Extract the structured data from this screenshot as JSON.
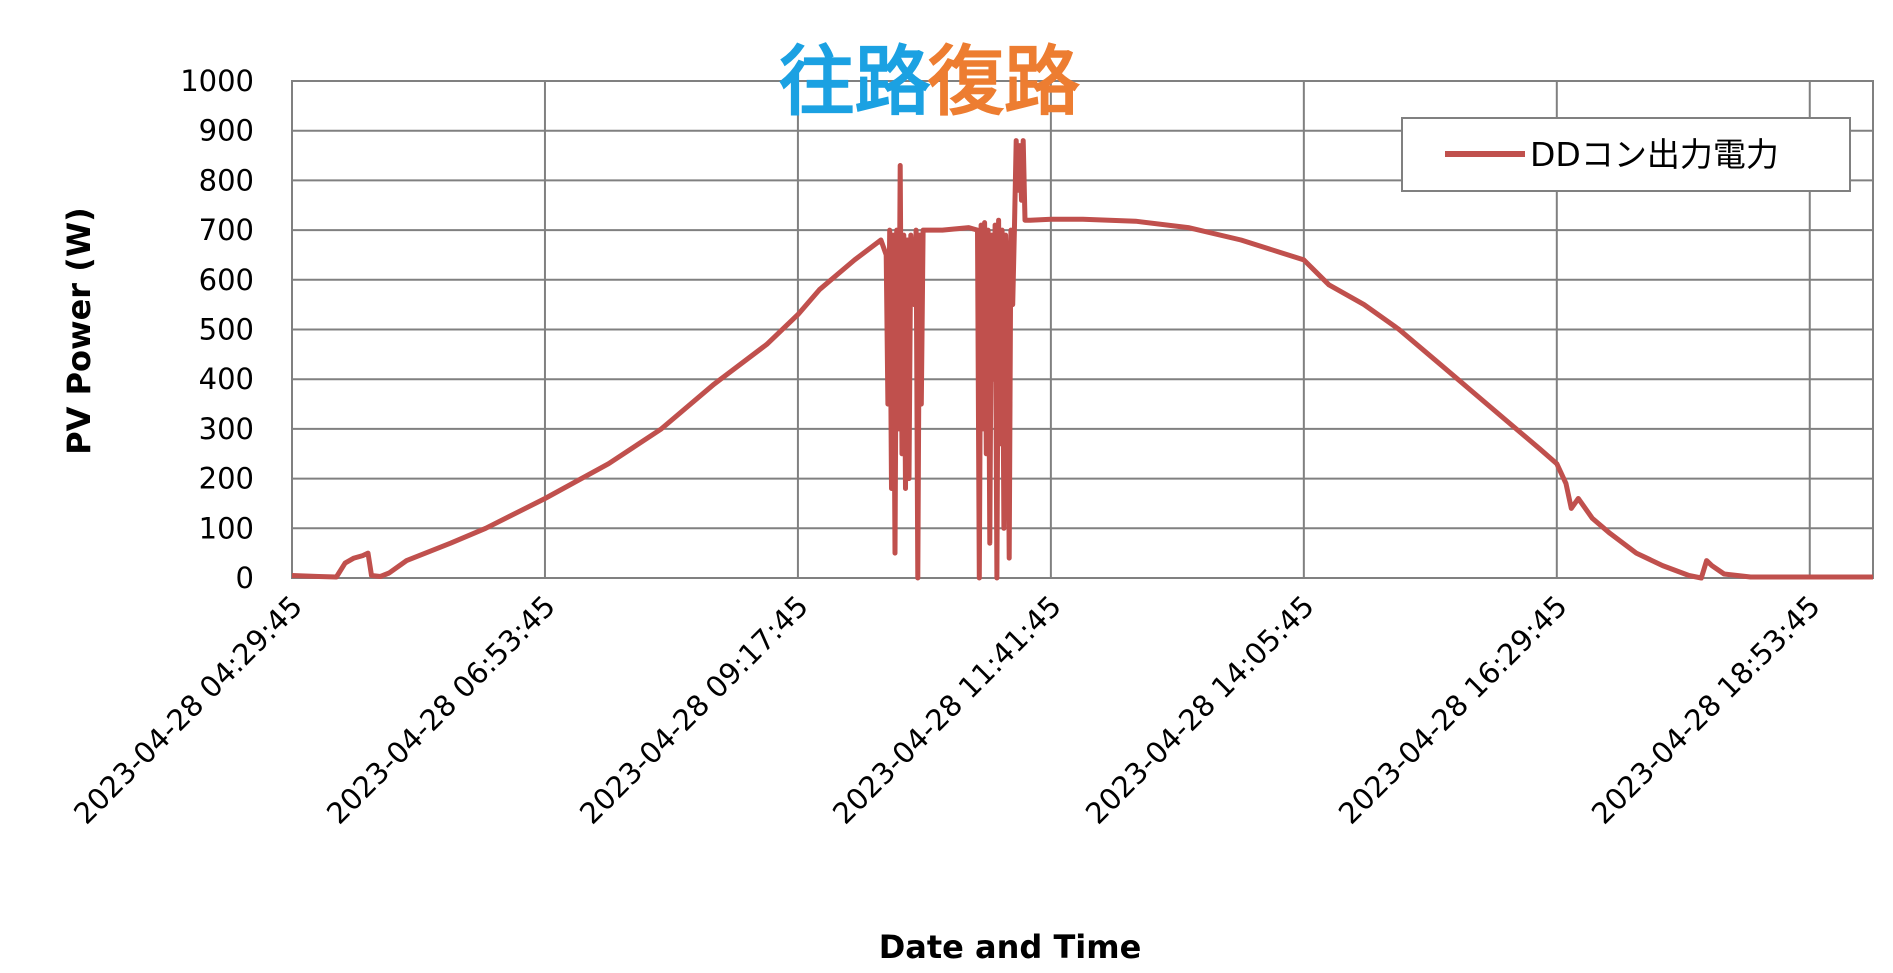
{
  "chart_data": {
    "type": "line",
    "xlabel": "Date and Time",
    "ylabel": "PV Power (W)",
    "ylim": [
      0,
      1000
    ],
    "yticks": [
      "0",
      "100",
      "200",
      "300",
      "400",
      "500",
      "600",
      "700",
      "800",
      "900",
      "1000"
    ],
    "xticks": [
      "2023-04-28 04:29:45",
      "2023-04-28 06:53:45",
      "2023-04-28 09:17:45",
      "2023-04-28 11:41:45",
      "2023-04-28 14:05:45",
      "2023-04-28 16:29:45",
      "2023-04-28 18:53:45"
    ],
    "xlim": [
      "2023-04-28 04:29:45",
      "2023-04-28 19:29:45"
    ],
    "grid": true,
    "legend_position": "top-right",
    "annotations": [
      {
        "text": "往路",
        "color": "#1BA1E2",
        "x": "2023-04-28 09:50:00"
      },
      {
        "text": "復路",
        "color": "#ED7D31",
        "x": "2023-04-28 11:15:00"
      }
    ],
    "series": [
      {
        "name": "DDコン出力電力",
        "color": "#C0504D",
        "points": [
          [
            "2023-04-28 04:29:45",
            5
          ],
          [
            "2023-04-28 04:45:00",
            3
          ],
          [
            "2023-04-28 04:55:00",
            2
          ],
          [
            "2023-04-28 05:00:00",
            30
          ],
          [
            "2023-04-28 05:05:00",
            40
          ],
          [
            "2023-04-28 05:10:00",
            45
          ],
          [
            "2023-04-28 05:13:00",
            50
          ],
          [
            "2023-04-28 05:15:00",
            5
          ],
          [
            "2023-04-28 05:20:00",
            3
          ],
          [
            "2023-04-28 05:25:00",
            10
          ],
          [
            "2023-04-28 05:35:00",
            35
          ],
          [
            "2023-04-28 06:00:00",
            70
          ],
          [
            "2023-04-28 06:20:00",
            100
          ],
          [
            "2023-04-28 06:53:45",
            160
          ],
          [
            "2023-04-28 07:30:00",
            230
          ],
          [
            "2023-04-28 08:00:00",
            300
          ],
          [
            "2023-04-28 08:30:00",
            390
          ],
          [
            "2023-04-28 09:00:00",
            470
          ],
          [
            "2023-04-28 09:17:45",
            530
          ],
          [
            "2023-04-28 09:30:00",
            580
          ],
          [
            "2023-04-28 09:50:00",
            640
          ],
          [
            "2023-04-28 10:05:00",
            680
          ],
          [
            "2023-04-28 10:08:00",
            650
          ],
          [
            "2023-04-28 10:09:00",
            350
          ],
          [
            "2023-04-28 10:10:00",
            700
          ],
          [
            "2023-04-28 10:11:00",
            180
          ],
          [
            "2023-04-28 10:12:00",
            690
          ],
          [
            "2023-04-28 10:13:00",
            50
          ],
          [
            "2023-04-28 10:14:00",
            700
          ],
          [
            "2023-04-28 10:15:00",
            300
          ],
          [
            "2023-04-28 10:16:00",
            830
          ],
          [
            "2023-04-28 10:17:00",
            250
          ],
          [
            "2023-04-28 10:18:00",
            690
          ],
          [
            "2023-04-28 10:19:00",
            180
          ],
          [
            "2023-04-28 10:20:00",
            680
          ],
          [
            "2023-04-28 10:21:00",
            200
          ],
          [
            "2023-04-28 10:22:00",
            690
          ],
          [
            "2023-04-28 10:24:00",
            550
          ],
          [
            "2023-04-28 10:25:00",
            700
          ],
          [
            "2023-04-28 10:26:00",
            0
          ],
          [
            "2023-04-28 10:27:00",
            690
          ],
          [
            "2023-04-28 10:28:00",
            350
          ],
          [
            "2023-04-28 10:29:00",
            700
          ],
          [
            "2023-04-28 10:40:00",
            700
          ],
          [
            "2023-04-28 10:55:00",
            705
          ],
          [
            "2023-04-28 11:00:00",
            700
          ],
          [
            "2023-04-28 11:01:00",
            0
          ],
          [
            "2023-04-28 11:02:00",
            710
          ],
          [
            "2023-04-28 11:03:00",
            300
          ],
          [
            "2023-04-28 11:04:00",
            715
          ],
          [
            "2023-04-28 11:05:00",
            250
          ],
          [
            "2023-04-28 11:06:00",
            700
          ],
          [
            "2023-04-28 11:07:00",
            70
          ],
          [
            "2023-04-28 11:08:00",
            690
          ],
          [
            "2023-04-28 11:09:00",
            400
          ],
          [
            "2023-04-28 11:10:00",
            710
          ],
          [
            "2023-04-28 11:11:00",
            0
          ],
          [
            "2023-04-28 11:12:00",
            720
          ],
          [
            "2023-04-28 11:13:00",
            270
          ],
          [
            "2023-04-28 11:14:00",
            700
          ],
          [
            "2023-04-28 11:15:00",
            100
          ],
          [
            "2023-04-28 11:16:00",
            690
          ],
          [
            "2023-04-28 11:17:00",
            600
          ],
          [
            "2023-04-28 11:18:00",
            40
          ],
          [
            "2023-04-28 11:19:00",
            700
          ],
          [
            "2023-04-28 11:20:00",
            550
          ],
          [
            "2023-04-28 11:21:00",
            700
          ],
          [
            "2023-04-28 11:22:00",
            880
          ],
          [
            "2023-04-28 11:23:00",
            780
          ],
          [
            "2023-04-28 11:24:00",
            870
          ],
          [
            "2023-04-28 11:25:00",
            760
          ],
          [
            "2023-04-28 11:26:00",
            880
          ],
          [
            "2023-04-28 11:27:00",
            720
          ],
          [
            "2023-04-28 11:30:00",
            720
          ],
          [
            "2023-04-28 11:41:45",
            722
          ],
          [
            "2023-04-28 12:00:00",
            722
          ],
          [
            "2023-04-28 12:30:00",
            718
          ],
          [
            "2023-04-28 13:00:00",
            705
          ],
          [
            "2023-04-28 13:30:00",
            680
          ],
          [
            "2023-04-28 14:05:45",
            640
          ],
          [
            "2023-04-28 14:20:00",
            590
          ],
          [
            "2023-04-28 14:40:00",
            550
          ],
          [
            "2023-04-28 15:00:00",
            500
          ],
          [
            "2023-04-28 15:20:00",
            440
          ],
          [
            "2023-04-28 15:40:00",
            380
          ],
          [
            "2023-04-28 16:00:00",
            320
          ],
          [
            "2023-04-28 16:20:00",
            260
          ],
          [
            "2023-04-28 16:29:45",
            230
          ],
          [
            "2023-04-28 16:35:00",
            190
          ],
          [
            "2023-04-28 16:38:00",
            140
          ],
          [
            "2023-04-28 16:42:00",
            160
          ],
          [
            "2023-04-28 16:50:00",
            120
          ],
          [
            "2023-04-28 17:00:00",
            90
          ],
          [
            "2023-04-28 17:15:00",
            50
          ],
          [
            "2023-04-28 17:30:00",
            25
          ],
          [
            "2023-04-28 17:45:00",
            5
          ],
          [
            "2023-04-28 17:52:00",
            0
          ],
          [
            "2023-04-28 17:55:00",
            35
          ],
          [
            "2023-04-28 17:58:00",
            25
          ],
          [
            "2023-04-28 18:05:00",
            8
          ],
          [
            "2023-04-28 18:20:00",
            2
          ],
          [
            "2023-04-28 19:29:45",
            2
          ]
        ]
      }
    ]
  }
}
